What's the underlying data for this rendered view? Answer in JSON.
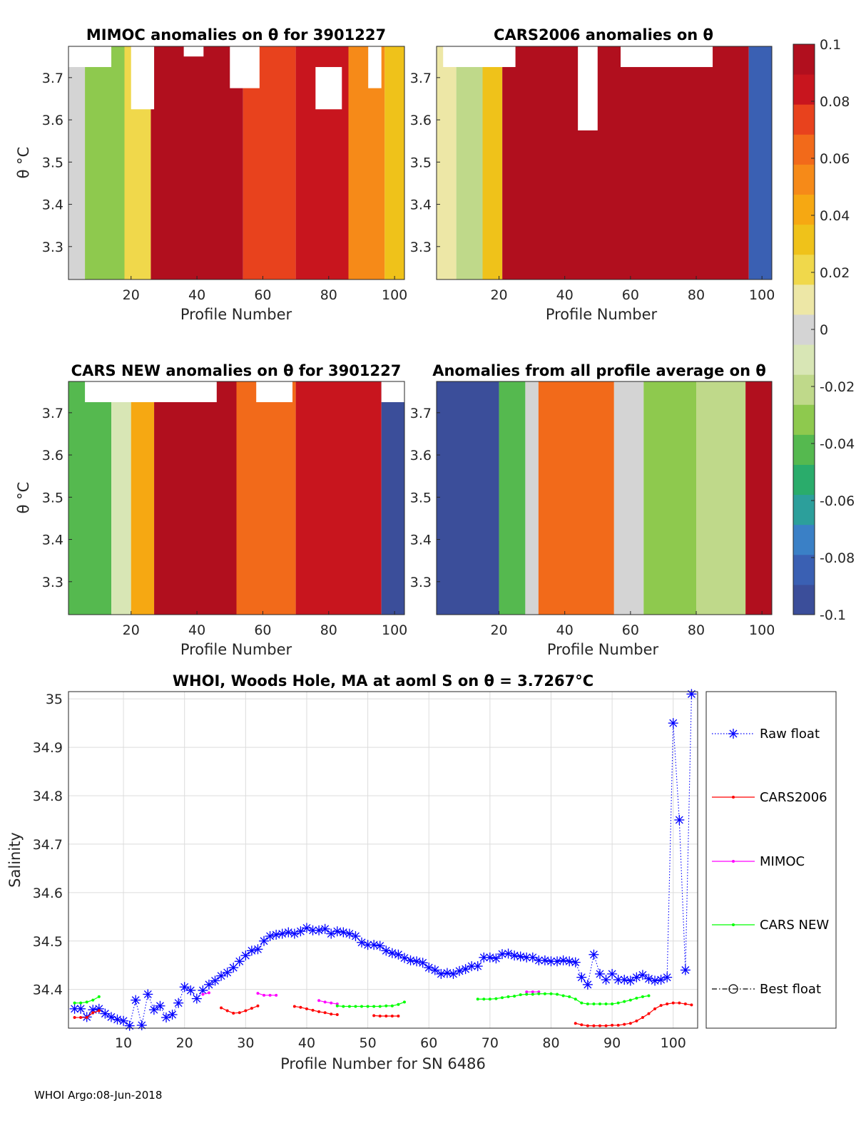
{
  "footer": "WHOI Argo:08-Jun-2018",
  "colorbar": {
    "ticks": [
      "0.1",
      "0.08",
      "0.06",
      "0.04",
      "0.02",
      "0",
      "-0.02",
      "-0.04",
      "-0.06",
      "-0.08",
      "-0.1"
    ],
    "range": [
      -0.1,
      0.1
    ],
    "colors": [
      "#3b4e9a",
      "#3a60b3",
      "#3a80c6",
      "#2c9f9b",
      "#2aac6b",
      "#55b94f",
      "#8ec94e",
      "#bfd98a",
      "#d8e6b5",
      "#d4d4d4",
      "#ede7a6",
      "#f0d84b",
      "#efc21a",
      "#f6a812",
      "#f68a18",
      "#f26a1a",
      "#e8421d",
      "#c8151e",
      "#b10f1e"
    ]
  },
  "chart_data": [
    {
      "type": "heatmap",
      "title_text": "MIMOC anomalies on θ  for 3901227",
      "xlabel": "Profile Number",
      "ylabel": "θ °C",
      "xlim": [
        1,
        103
      ],
      "ylim": [
        3.222,
        3.774
      ],
      "xticks": [
        "20",
        "40",
        "60",
        "80",
        "100"
      ],
      "yticks": [
        "3.7",
        "3.6",
        "3.5",
        "3.4",
        "3.3"
      ],
      "columns": [
        {
          "from": 1,
          "to": 6,
          "value": 0.0
        },
        {
          "from": 6,
          "to": 18,
          "value": -0.03
        },
        {
          "from": 18,
          "to": 26,
          "value": 0.02
        },
        {
          "from": 26,
          "to": 54,
          "value": 0.1
        },
        {
          "from": 54,
          "to": 70,
          "value": 0.07
        },
        {
          "from": 70,
          "to": 86,
          "value": 0.08
        },
        {
          "from": 86,
          "to": 97,
          "value": 0.05
        },
        {
          "from": 97,
          "to": 103,
          "value": 0.03
        }
      ],
      "blank_regions": [
        {
          "x": [
            1,
            14
          ],
          "y": [
            3.725,
            3.774
          ]
        },
        {
          "x": [
            20,
            27
          ],
          "y": [
            3.625,
            3.774
          ]
        },
        {
          "x": [
            36,
            42
          ],
          "y": [
            3.75,
            3.774
          ]
        },
        {
          "x": [
            50,
            59
          ],
          "y": [
            3.675,
            3.774
          ]
        },
        {
          "x": [
            76,
            84
          ],
          "y": [
            3.625,
            3.725
          ]
        },
        {
          "x": [
            92,
            96
          ],
          "y": [
            3.675,
            3.774
          ]
        }
      ]
    },
    {
      "type": "heatmap",
      "title_text": "CARS2006 anomalies on θ",
      "xlabel": "Profile Number",
      "ylabel": "",
      "xlim": [
        1,
        103
      ],
      "ylim": [
        3.222,
        3.774
      ],
      "xticks": [
        "20",
        "40",
        "60",
        "80",
        "100"
      ],
      "yticks": [
        "3.7",
        "3.6",
        "3.5",
        "3.4",
        "3.3"
      ],
      "columns": [
        {
          "from": 1,
          "to": 7,
          "value": 0.01
        },
        {
          "from": 7,
          "to": 15,
          "value": -0.02
        },
        {
          "from": 15,
          "to": 21,
          "value": 0.03
        },
        {
          "from": 21,
          "to": 96,
          "value": 0.1
        },
        {
          "from": 96,
          "to": 103,
          "value": -0.08
        }
      ],
      "blank_regions": [
        {
          "x": [
            3,
            25
          ],
          "y": [
            3.725,
            3.774
          ]
        },
        {
          "x": [
            44,
            50
          ],
          "y": [
            3.575,
            3.774
          ]
        },
        {
          "x": [
            57,
            85
          ],
          "y": [
            3.725,
            3.774
          ]
        }
      ]
    },
    {
      "type": "heatmap",
      "title_text": "CARS NEW anomalies on θ for 3901227",
      "xlabel": "Profile Number",
      "ylabel": "θ °C",
      "xlim": [
        1,
        103
      ],
      "ylim": [
        3.222,
        3.774
      ],
      "xticks": [
        "20",
        "40",
        "60",
        "80",
        "100"
      ],
      "yticks": [
        "3.7",
        "3.6",
        "3.5",
        "3.4",
        "3.3"
      ],
      "columns": [
        {
          "from": 1,
          "to": 14,
          "value": -0.04
        },
        {
          "from": 14,
          "to": 20,
          "value": -0.01
        },
        {
          "from": 20,
          "to": 27,
          "value": 0.04
        },
        {
          "from": 27,
          "to": 52,
          "value": 0.1
        },
        {
          "from": 52,
          "to": 70,
          "value": 0.06
        },
        {
          "from": 70,
          "to": 96,
          "value": 0.08
        },
        {
          "from": 96,
          "to": 103,
          "value": -0.09
        }
      ],
      "blank_regions": [
        {
          "x": [
            6,
            46
          ],
          "y": [
            3.725,
            3.774
          ]
        },
        {
          "x": [
            58,
            69
          ],
          "y": [
            3.725,
            3.774
          ]
        },
        {
          "x": [
            96,
            103
          ],
          "y": [
            3.725,
            3.774
          ]
        }
      ]
    },
    {
      "type": "heatmap",
      "title_text": "Anomalies from all profile average on θ",
      "xlabel": "Profile Number",
      "ylabel": "",
      "xlim": [
        1,
        103
      ],
      "ylim": [
        3.222,
        3.774
      ],
      "xticks": [
        "20",
        "40",
        "60",
        "80",
        "100"
      ],
      "yticks": [
        "3.7",
        "3.6",
        "3.5",
        "3.4",
        "3.3"
      ],
      "columns": [
        {
          "from": 1,
          "to": 20,
          "value": -0.1
        },
        {
          "from": 20,
          "to": 28,
          "value": -0.04
        },
        {
          "from": 28,
          "to": 32,
          "value": 0.0
        },
        {
          "from": 32,
          "to": 55,
          "value": 0.06
        },
        {
          "from": 55,
          "to": 64,
          "value": 0.0
        },
        {
          "from": 64,
          "to": 80,
          "value": -0.03
        },
        {
          "from": 80,
          "to": 95,
          "value": -0.02
        },
        {
          "from": 95,
          "to": 103,
          "value": 0.1
        }
      ],
      "blank_regions": []
    },
    {
      "type": "line",
      "title_text": "WHOI, Woods Hole, MA at aoml S on θ = 3.7267°C",
      "xlabel": "Profile Number for SN 6486",
      "ylabel": "Salinity",
      "xlim": [
        1,
        104
      ],
      "ylim": [
        34.32,
        35.015
      ],
      "xticks": [
        10,
        20,
        30,
        40,
        50,
        60,
        70,
        80,
        90,
        100
      ],
      "yticks": [
        34.4,
        34.5,
        34.6,
        34.7,
        34.8,
        34.9,
        35
      ],
      "x": [
        2,
        3,
        4,
        5,
        6,
        7,
        8,
        9,
        10,
        11,
        12,
        13,
        14,
        15,
        16,
        17,
        18,
        19,
        20,
        21,
        22,
        23,
        24,
        25,
        26,
        27,
        28,
        29,
        30,
        31,
        32,
        33,
        34,
        35,
        36,
        37,
        38,
        39,
        40,
        41,
        42,
        43,
        44,
        45,
        46,
        47,
        48,
        49,
        50,
        51,
        52,
        53,
        54,
        55,
        56,
        57,
        58,
        59,
        60,
        61,
        62,
        63,
        64,
        65,
        66,
        67,
        68,
        69,
        70,
        71,
        72,
        73,
        74,
        75,
        76,
        77,
        78,
        79,
        80,
        81,
        82,
        83,
        84,
        85,
        86,
        87,
        88,
        89,
        90,
        91,
        92,
        93,
        94,
        95,
        96,
        97,
        98,
        99,
        100,
        101,
        102,
        103
      ],
      "series": [
        {
          "name": "Raw float",
          "color": "#0000ff",
          "marker": "asterisk",
          "style": "dotted",
          "values": [
            34.36,
            34.36,
            34.343,
            34.358,
            34.36,
            34.35,
            34.343,
            34.338,
            34.335,
            34.325,
            34.378,
            34.326,
            34.39,
            34.358,
            34.366,
            34.342,
            34.348,
            34.372,
            34.405,
            34.398,
            34.381,
            34.398,
            34.41,
            34.418,
            34.428,
            34.435,
            34.445,
            34.458,
            34.47,
            34.48,
            34.483,
            34.5,
            34.51,
            34.513,
            34.515,
            34.518,
            34.515,
            34.52,
            34.527,
            34.522,
            34.522,
            34.525,
            34.515,
            34.52,
            34.518,
            34.515,
            34.51,
            34.497,
            34.492,
            34.492,
            34.49,
            34.48,
            34.475,
            34.472,
            34.465,
            34.46,
            34.458,
            34.455,
            34.445,
            34.44,
            34.432,
            34.434,
            34.432,
            34.438,
            34.442,
            34.448,
            34.448,
            34.466,
            34.466,
            34.464,
            34.473,
            34.474,
            34.47,
            34.468,
            34.466,
            34.466,
            34.46,
            34.46,
            34.458,
            34.458,
            34.46,
            34.458,
            34.456,
            34.425,
            34.41,
            34.472,
            34.432,
            34.42,
            34.432,
            34.42,
            34.42,
            34.418,
            34.425,
            34.43,
            34.422,
            34.418,
            34.42,
            34.425,
            34.95,
            34.75,
            34.44,
            35.01
          ]
        },
        {
          "name": "CARS2006",
          "color": "#ff0000",
          "marker": "dot",
          "style": "solid",
          "segments": [
            {
              "x": [
                2,
                3,
                4,
                5,
                6
              ],
              "y": [
                34.342,
                34.342,
                34.342,
                34.352,
                34.356
              ]
            },
            {
              "x": [
                26,
                27,
                28,
                29,
                30,
                31,
                32
              ],
              "y": [
                34.362,
                34.356,
                34.351,
                34.352,
                34.356,
                34.361,
                34.366
              ]
            },
            {
              "x": [
                38,
                39,
                40,
                41,
                42,
                43,
                44,
                45
              ],
              "y": [
                34.365,
                34.363,
                34.36,
                34.357,
                34.354,
                34.352,
                34.349,
                34.348
              ]
            },
            {
              "x": [
                51,
                52,
                53,
                54,
                55
              ],
              "y": [
                34.346,
                34.345,
                34.345,
                34.345,
                34.345
              ]
            },
            {
              "x": [
                84,
                85,
                86,
                87,
                88,
                89,
                90,
                91,
                92,
                93,
                94,
                95,
                96,
                97,
                98,
                99,
                100,
                101,
                102,
                103
              ],
              "y": [
                34.33,
                34.327,
                34.325,
                34.325,
                34.325,
                34.325,
                34.326,
                34.326,
                34.328,
                34.33,
                34.335,
                34.342,
                34.35,
                34.36,
                34.367,
                34.37,
                34.372,
                34.372,
                34.37,
                34.368
              ]
            }
          ]
        },
        {
          "name": "MIMOC",
          "color": "#ff00ff",
          "marker": "dot",
          "style": "solid",
          "segments": [
            {
              "x": [
                23,
                24
              ],
              "y": [
                34.39,
                34.393
              ]
            },
            {
              "x": [
                32,
                33,
                34,
                35
              ],
              "y": [
                34.392,
                34.388,
                34.388,
                34.388
              ]
            },
            {
              "x": [
                42,
                43,
                44,
                45
              ],
              "y": [
                34.377,
                34.374,
                34.372,
                34.37
              ]
            },
            {
              "x": [
                76,
                77,
                78
              ],
              "y": [
                34.395,
                34.395,
                34.395
              ]
            }
          ]
        },
        {
          "name": "CARS NEW",
          "color": "#00ff00",
          "marker": "dot",
          "style": "solid",
          "segments": [
            {
              "x": [
                2,
                3,
                4,
                5,
                6
              ],
              "y": [
                34.372,
                34.372,
                34.374,
                34.378,
                34.385
              ]
            },
            {
              "x": [
                45,
                46,
                47,
                48,
                49,
                50,
                51,
                52,
                53,
                54,
                55,
                56
              ],
              "y": [
                34.366,
                34.365,
                34.365,
                34.365,
                34.365,
                34.365,
                34.365,
                34.365,
                34.366,
                34.366,
                34.369,
                34.374
              ]
            },
            {
              "x": [
                68,
                69,
                70,
                71,
                72,
                73,
                74,
                75,
                76,
                77,
                78,
                79,
                80,
                81,
                82,
                83,
                84,
                85,
                86,
                87,
                88,
                89,
                90,
                91,
                92,
                93,
                94,
                95,
                96
              ],
              "y": [
                34.38,
                34.38,
                34.38,
                34.381,
                34.383,
                34.385,
                34.386,
                34.389,
                34.39,
                34.39,
                34.391,
                34.391,
                34.391,
                34.39,
                34.387,
                34.385,
                34.38,
                34.372,
                34.37,
                34.37,
                34.37,
                34.37,
                34.37,
                34.372,
                34.375,
                34.378,
                34.382,
                34.385,
                34.387
              ]
            }
          ]
        },
        {
          "name": "Best float",
          "color": "#000000",
          "marker": "circle",
          "style": "dashdot",
          "segments": []
        }
      ],
      "legend_position": "right"
    }
  ]
}
